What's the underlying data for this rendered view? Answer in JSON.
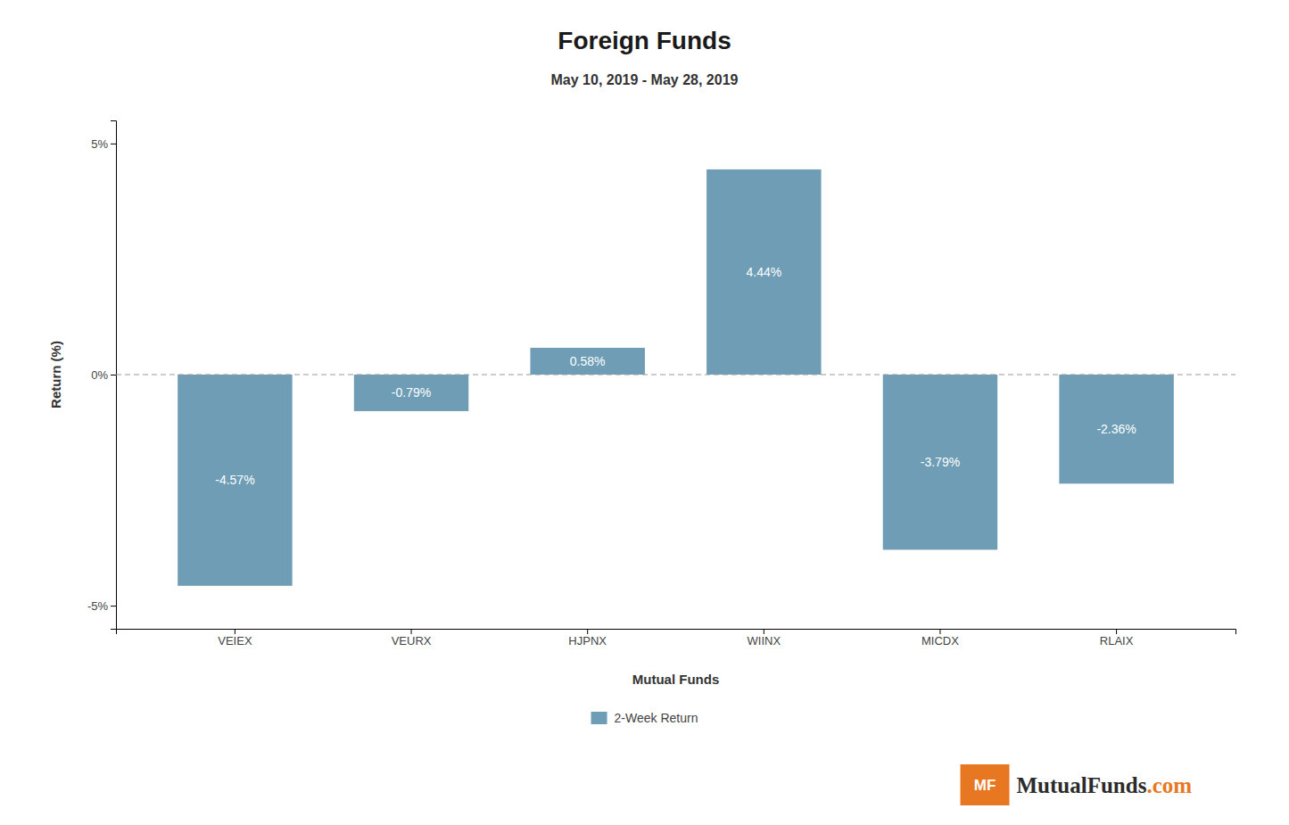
{
  "chart_data": {
    "type": "bar",
    "title": "Foreign Funds",
    "subtitle": "May 10, 2019 - May 28, 2019",
    "xlabel": "Mutual Funds",
    "ylabel": "Return (%)",
    "categories": [
      "VEIEX",
      "VEURX",
      "HJPNX",
      "WIINX",
      "MICDX",
      "RLAIX"
    ],
    "series": [
      {
        "name": "2-Week Return",
        "color": "#6e9db5",
        "values": [
          -4.57,
          -0.79,
          0.58,
          4.44,
          -3.79,
          -2.36
        ],
        "value_labels": [
          "-4.57%",
          "-0.79%",
          "0.58%",
          "4.44%",
          "-3.79%",
          "-2.36%"
        ]
      }
    ],
    "data_labels": true,
    "ylim": [
      -5.5,
      5.5
    ],
    "yticks": [
      {
        "value": -5,
        "label": "-5%"
      },
      {
        "value": 0,
        "label": "0%"
      },
      {
        "value": 5,
        "label": "5%"
      }
    ],
    "grid": false,
    "legend": "bottom",
    "annotations": [
      {
        "text": "MF",
        "color": "#e87722"
      },
      {
        "text": "MutualFunds",
        "color": "#2b2b2b"
      },
      {
        "text": ".com",
        "color": "#e87722"
      },
      {
        "y": 0,
        "line_style": "dashed",
        "color": "#999999"
      }
    ]
  }
}
